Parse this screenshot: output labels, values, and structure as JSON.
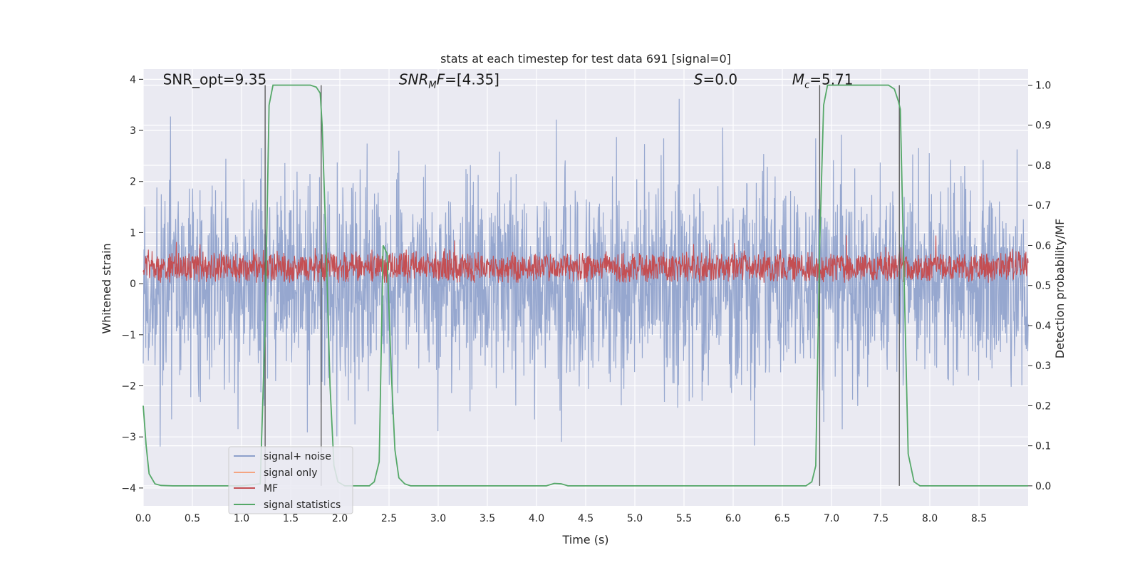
{
  "chart_data": {
    "type": "line",
    "title": "stats at each timestep for test data 691 [signal=0]",
    "xlabel": "Time (s)",
    "ylabel": "Whitened strain",
    "ylabel_right": "Detection probability/MF",
    "xlim": [
      0.0,
      9.0
    ],
    "ylim": [
      -4.35,
      4.2
    ],
    "ylim_right": [
      -0.05,
      1.04
    ],
    "xticks": [
      0.0,
      0.5,
      1.0,
      1.5,
      2.0,
      2.5,
      3.0,
      3.5,
      4.0,
      4.5,
      5.0,
      5.5,
      6.0,
      6.5,
      7.0,
      7.5,
      8.0,
      8.5
    ],
    "xtick_labels": [
      "0.0",
      "0.5",
      "1.0",
      "1.5",
      "2.0",
      "2.5",
      "3.0",
      "3.5",
      "4.0",
      "4.5",
      "5.0",
      "5.5",
      "6.0",
      "6.5",
      "7.0",
      "7.5",
      "8.0",
      "8.5"
    ],
    "yticks": [
      4,
      3,
      2,
      1,
      0,
      -1,
      -2,
      -3,
      -4
    ],
    "ytick_labels": [
      "4",
      "3",
      "2",
      "1",
      "0",
      "−1",
      "−2",
      "−3",
      "−4"
    ],
    "yticks_right": [
      1.0,
      0.9,
      0.8,
      0.7,
      0.6,
      0.5,
      0.4,
      0.3,
      0.2,
      0.1,
      0.0
    ],
    "ytick_labels_right": [
      "1.0",
      "0.9",
      "0.8",
      "0.7",
      "0.6",
      "0.5",
      "0.4",
      "0.3",
      "0.2",
      "0.1",
      "0.0"
    ],
    "grid": true,
    "legend_position": "lower-left",
    "annotations": [
      {
        "text": "SNR_opt=9.35",
        "x": 0.2,
        "y": 3.9
      },
      {
        "text": "SNR",
        "sub": "M",
        "tail": "F=[4.35]",
        "italic": true,
        "x": 2.6,
        "y": 3.9
      },
      {
        "text": "S",
        "tail": "=0.0",
        "italic": true,
        "x": 5.6,
        "y": 3.9
      },
      {
        "text": "M",
        "sub": "c",
        "tail": "=5.71",
        "italic": true,
        "x": 6.6,
        "y": 3.9
      }
    ],
    "vlines": [
      1.24,
      1.81,
      6.88,
      7.69
    ],
    "series": [
      {
        "name": "signal+ noise",
        "color": "#8da0cb",
        "noise_std": 0.95,
        "axis": "left"
      },
      {
        "name": "signal only",
        "color": "#f4a582",
        "axis": "left",
        "values": []
      },
      {
        "name": "MF",
        "color": "#c44e52",
        "axis": "left",
        "mean": 0.32,
        "spread": 0.3
      },
      {
        "name": "signal statistics",
        "color": "#55a868",
        "axis": "right",
        "x": [
          0.0,
          0.03,
          0.06,
          0.12,
          0.18,
          0.3,
          1.0,
          1.19,
          1.24,
          1.28,
          1.32,
          1.7,
          1.76,
          1.8,
          1.82,
          1.86,
          1.9,
          1.94,
          1.98,
          2.05,
          2.3,
          2.35,
          2.4,
          2.44,
          2.48,
          2.52,
          2.56,
          2.6,
          2.66,
          2.72,
          2.8,
          4.1,
          4.18,
          4.25,
          4.32,
          6.74,
          6.8,
          6.84,
          6.88,
          6.92,
          6.96,
          7.0,
          7.58,
          7.64,
          7.68,
          7.7,
          7.74,
          7.78,
          7.84,
          7.9,
          9.0
        ],
        "values": [
          0.2,
          0.1,
          0.03,
          0.005,
          0.001,
          0.0,
          0.0,
          0.005,
          0.4,
          0.95,
          1.0,
          1.0,
          0.995,
          0.98,
          0.9,
          0.6,
          0.25,
          0.05,
          0.01,
          0.0,
          0.0,
          0.01,
          0.06,
          0.6,
          0.58,
          0.3,
          0.09,
          0.02,
          0.005,
          0.0,
          0.0,
          0.0,
          0.006,
          0.005,
          0.0,
          0.0,
          0.01,
          0.05,
          0.6,
          0.95,
          1.0,
          1.0,
          1.0,
          0.99,
          0.96,
          0.94,
          0.5,
          0.08,
          0.01,
          0.0,
          0.0
        ]
      }
    ]
  }
}
